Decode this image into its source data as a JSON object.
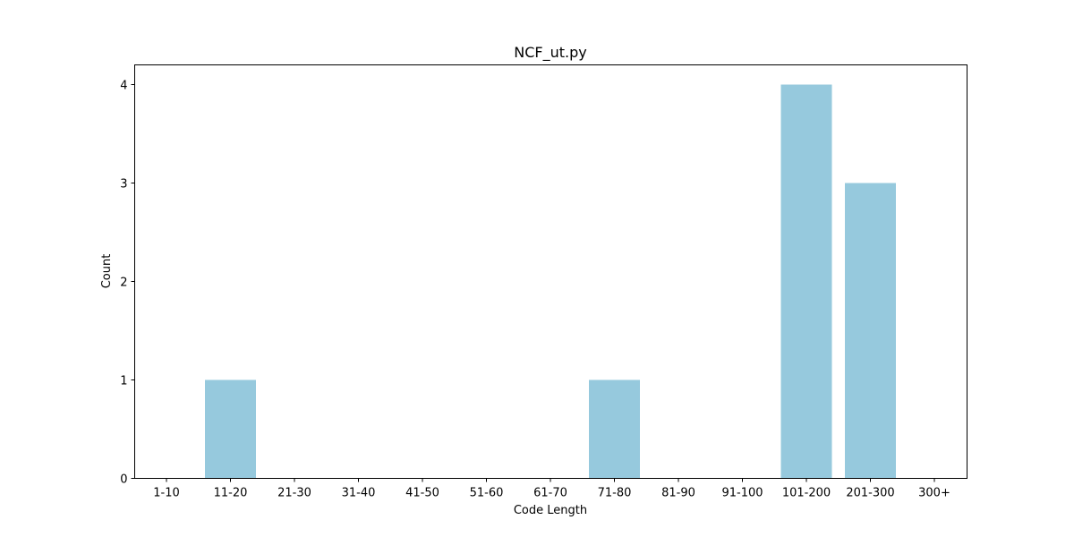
{
  "chart_data": {
    "type": "bar",
    "title": "NCF_ut.py",
    "xlabel": "Code Length",
    "ylabel": "Count",
    "categories": [
      "1-10",
      "11-20",
      "21-30",
      "31-40",
      "41-50",
      "51-60",
      "61-70",
      "71-80",
      "81-90",
      "91-100",
      "101-200",
      "201-300",
      "300+"
    ],
    "values": [
      0,
      1,
      0,
      0,
      0,
      0,
      0,
      1,
      0,
      0,
      4,
      3,
      0
    ],
    "ylim": [
      0,
      4.2
    ],
    "yticks": [
      0,
      1,
      2,
      3,
      4
    ],
    "grid": false,
    "bar_color": "#96c9dd"
  }
}
